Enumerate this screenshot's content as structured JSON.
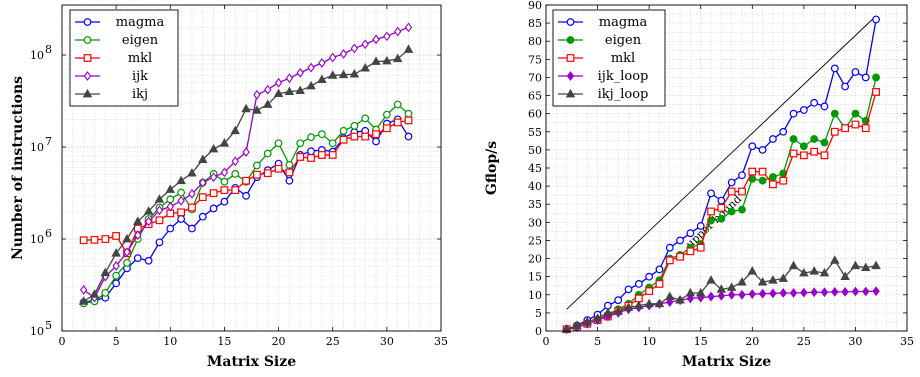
{
  "chart_data": [
    {
      "type": "line",
      "title": "",
      "xlabel": "Matrix Size",
      "ylabel": "Number of instructions",
      "xlim": [
        0,
        35
      ],
      "ylim": [
        100000,
        350000000
      ],
      "yscale": "log",
      "grid": true,
      "legend_position": "top-left",
      "x_ticks": [
        "0",
        "5",
        "10",
        "15",
        "20",
        "25",
        "30",
        "35"
      ],
      "y_ticks": [
        {
          "value": 100000,
          "base": "10",
          "exp": "5"
        },
        {
          "value": 1000000,
          "base": "10",
          "exp": "6"
        },
        {
          "value": 10000000,
          "base": "10",
          "exp": "7"
        },
        {
          "value": 100000000,
          "base": "10",
          "exp": "8"
        }
      ],
      "x": [
        2,
        3,
        4,
        5,
        6,
        7,
        8,
        9,
        10,
        11,
        12,
        13,
        14,
        15,
        16,
        17,
        18,
        19,
        20,
        21,
        22,
        23,
        24,
        25,
        26,
        27,
        28,
        29,
        30,
        31,
        32
      ],
      "series": [
        {
          "name": "magma",
          "color": "#0000ff",
          "marker": "circle-open",
          "values": [
            205000,
            215000,
            230000,
            330000,
            480000,
            620000,
            580000,
            920000,
            1300000,
            1650000,
            1300000,
            1750000,
            2150000,
            2550000,
            3600000,
            2950000,
            4700000,
            5600000,
            6600000,
            4300000,
            8200000,
            9000000,
            9300000,
            8900000,
            12500000,
            14500000,
            15000000,
            11500000,
            18000000,
            20000000,
            13000000
          ]
        },
        {
          "name": "eigen",
          "color": "#009900",
          "marker": "circle-open",
          "values": [
            200000,
            210000,
            260000,
            400000,
            550000,
            1000000,
            1650000,
            2200000,
            2700000,
            3200000,
            2100000,
            4100000,
            5100000,
            4200000,
            5100000,
            4200000,
            6300000,
            8500000,
            11000000,
            6400000,
            11000000,
            12800000,
            13800000,
            11000000,
            15000000,
            17000000,
            20500000,
            15500000,
            22500000,
            29000000,
            23000000
          ]
        },
        {
          "name": "mkl",
          "color": "#ff0000",
          "marker": "square-open",
          "values": [
            970000,
            980000,
            1000000,
            1080000,
            700000,
            1300000,
            1450000,
            1600000,
            1900000,
            1950000,
            2200000,
            2850000,
            3150000,
            3400000,
            3400000,
            4300000,
            5000000,
            5200000,
            5800000,
            5300000,
            7800000,
            7600000,
            8200000,
            8200000,
            12000000,
            13000000,
            13000000,
            13800000,
            16000000,
            18500000,
            19500000
          ]
        },
        {
          "name": "ijk",
          "color": "#9900cc",
          "marker": "diamond-open",
          "values": [
            280000,
            230000,
            390000,
            510000,
            720000,
            1100000,
            1550000,
            2050000,
            2250000,
            2600000,
            3100000,
            4100000,
            4700000,
            5300000,
            7000000,
            8800000,
            37000000,
            42000000,
            50000000,
            56000000,
            64000000,
            73000000,
            82000000,
            94000000,
            103000000,
            118000000,
            131000000,
            148000000,
            160000000,
            180000000,
            200000000
          ]
        },
        {
          "name": "ikj",
          "color": "#444444",
          "marker": "triangle-filled",
          "values": [
            210000,
            250000,
            430000,
            700000,
            1000000,
            1550000,
            2000000,
            2700000,
            3450000,
            4300000,
            5200000,
            7300000,
            9500000,
            11000000,
            15000000,
            26000000,
            25000000,
            29000000,
            38000000,
            40000000,
            41000000,
            46000000,
            54000000,
            60000000,
            61000000,
            62000000,
            72000000,
            85000000,
            86000000,
            91000000,
            115000000
          ]
        }
      ]
    },
    {
      "type": "line",
      "title": "",
      "xlabel": "Matrix Size",
      "ylabel": "Gflop/s",
      "xlim": [
        0,
        35
      ],
      "ylim": [
        0,
        90
      ],
      "grid": true,
      "legend_position": "top-left",
      "x_ticks": [
        "0",
        "5",
        "10",
        "15",
        "20",
        "25",
        "30",
        "35"
      ],
      "y_ticks": [
        "0",
        "5",
        "10",
        "15",
        "20",
        "25",
        "30",
        "35",
        "40",
        "45",
        "50",
        "55",
        "60",
        "65",
        "70",
        "75",
        "80",
        "85",
        "90"
      ],
      "annotation": {
        "text": "upper bound",
        "line": [
          [
            2,
            6
          ],
          [
            32,
            87
          ]
        ]
      },
      "x": [
        2,
        3,
        4,
        5,
        6,
        7,
        8,
        9,
        10,
        11,
        12,
        13,
        14,
        15,
        16,
        17,
        18,
        19,
        20,
        21,
        22,
        23,
        24,
        25,
        26,
        27,
        28,
        29,
        30,
        31,
        32
      ],
      "series": [
        {
          "name": "magma",
          "color": "#0000ff",
          "marker": "circle-open",
          "values": [
            0.5,
            1.5,
            3,
            4.5,
            7,
            8.5,
            11.5,
            13,
            15,
            17,
            23,
            25,
            27,
            29,
            38,
            36,
            41,
            43,
            51,
            50,
            53,
            55,
            60,
            61,
            63,
            62,
            72.5,
            67.5,
            71.5,
            70,
            86
          ]
        },
        {
          "name": "eigen",
          "color": "#009900",
          "marker": "circle-filled",
          "values": [
            0.5,
            1,
            2,
            3,
            4.5,
            6,
            7.5,
            10,
            12,
            14,
            20,
            21,
            23,
            24,
            30.5,
            31,
            33,
            33.5,
            42,
            41.5,
            42.5,
            43.5,
            53,
            51,
            53,
            52,
            60,
            56,
            60,
            58,
            70
          ]
        },
        {
          "name": "mkl",
          "color": "#ff0000",
          "marker": "square-open",
          "values": [
            0.5,
            1,
            2,
            3,
            4,
            5.5,
            7,
            9,
            11,
            13,
            19.5,
            20.5,
            22,
            23,
            33,
            34,
            38.5,
            38.5,
            44,
            44,
            40.5,
            41.5,
            49,
            48.5,
            49.5,
            48.5,
            55,
            56,
            57,
            56,
            66
          ]
        },
        {
          "name": "ijk_loop",
          "color": "#9900cc",
          "marker": "diamond-filled",
          "values": [
            0.5,
            1,
            2,
            3,
            4,
            5,
            6,
            6.5,
            7,
            7.5,
            8,
            8.5,
            9,
            9.2,
            9.5,
            9.7,
            10,
            10,
            10.2,
            10.3,
            10.4,
            10.5,
            10.5,
            10.6,
            10.7,
            10.7,
            10.8,
            10.8,
            10.9,
            10.9,
            11
          ]
        },
        {
          "name": "ikj_loop",
          "color": "#444444",
          "marker": "triangle-filled",
          "values": [
            0.5,
            1.5,
            2.5,
            3.5,
            5,
            5.5,
            6.5,
            7,
            7.5,
            7.5,
            9.5,
            8.5,
            10.5,
            10.5,
            14,
            11.5,
            12,
            13.5,
            16.5,
            13.5,
            14,
            14.5,
            18,
            16,
            16.5,
            16,
            19.5,
            15,
            18,
            17.5,
            18
          ]
        }
      ]
    }
  ]
}
